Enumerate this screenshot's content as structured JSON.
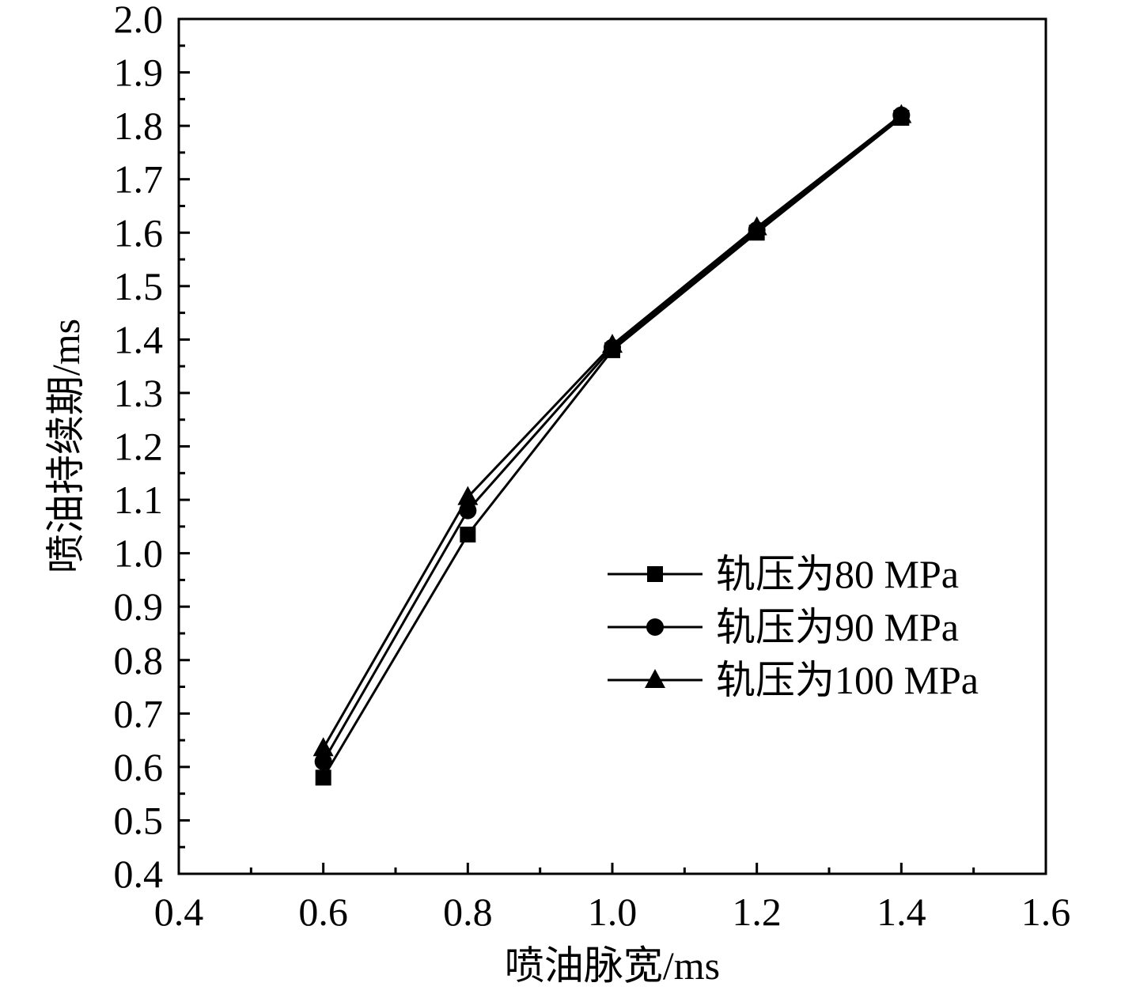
{
  "chart_data": {
    "type": "line",
    "title": "",
    "xlabel": "喷油脉宽/ms",
    "ylabel": "喷油持续期/ms",
    "xlim": [
      0.4,
      1.6
    ],
    "ylim": [
      0.4,
      2.0
    ],
    "x_major_ticks": [
      0.4,
      0.6,
      0.8,
      1.0,
      1.2,
      1.4,
      1.6
    ],
    "x_tick_labels": [
      "0.4",
      "0.6",
      "0.8",
      "1.0",
      "1.2",
      "1.4",
      "1.6"
    ],
    "x_minor_ticks": [
      0.5,
      0.7,
      0.9,
      1.1,
      1.3,
      1.5
    ],
    "y_major_ticks": [
      0.4,
      0.5,
      0.6,
      0.7,
      0.8,
      0.9,
      1.0,
      1.1,
      1.2,
      1.3,
      1.4,
      1.5,
      1.6,
      1.7,
      1.8,
      1.9,
      2.0
    ],
    "y_tick_labels": [
      "0.4",
      "0.5",
      "0.6",
      "0.7",
      "0.8",
      "0.9",
      "1.0",
      "1.1",
      "1.2",
      "1.3",
      "1.4",
      "1.5",
      "1.6",
      "1.7",
      "1.8",
      "1.9",
      "2.0"
    ],
    "y_minor_ticks": [
      0.45,
      0.55,
      0.65,
      0.75,
      0.85,
      0.95,
      1.05,
      1.15,
      1.25,
      1.35,
      1.45,
      1.55,
      1.65,
      1.75,
      1.85,
      1.95
    ],
    "grid": false,
    "legend_position": "center-right",
    "line_color": "#000000",
    "x": [
      0.6,
      0.8,
      1.0,
      1.2,
      1.4
    ],
    "series": [
      {
        "name": "轨压为80 MPa",
        "marker": "square",
        "values": [
          0.58,
          1.035,
          1.38,
          1.6,
          1.815
        ]
      },
      {
        "name": "轨压为90 MPa",
        "marker": "circle",
        "values": [
          0.61,
          1.08,
          1.385,
          1.605,
          1.82
        ]
      },
      {
        "name": "轨压为100 MPa",
        "marker": "triangle",
        "values": [
          0.635,
          1.105,
          1.39,
          1.61,
          1.82
        ]
      }
    ]
  }
}
